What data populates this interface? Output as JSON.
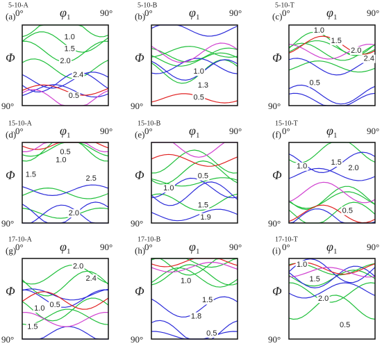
{
  "axis": {
    "x_start": "0°",
    "x_end": "90°",
    "x_label": "φ",
    "x_label_sub": "1",
    "y_label": "Φ",
    "y_end": "90°"
  },
  "panels": [
    {
      "sample": "5-10-A",
      "letter": "(a)",
      "contour_labels": [
        "1.0",
        "1.5",
        "2.0",
        "2.4",
        "0.5"
      ]
    },
    {
      "sample": "5-10-B",
      "letter": "(b)",
      "contour_labels": [
        "1.0",
        "1.3",
        "0.5"
      ]
    },
    {
      "sample": "5-10-T",
      "letter": "(c)",
      "contour_labels": [
        "1.0",
        "1.5",
        "2.0",
        "2.4",
        "0.5"
      ]
    },
    {
      "sample": "15-10-A",
      "letter": "(d)",
      "contour_labels": [
        "0.5",
        "1.0",
        "1.5",
        "2.5",
        "2.0"
      ]
    },
    {
      "sample": "15-10-B",
      "letter": "(e)",
      "contour_labels": [
        "0.5",
        "1.0",
        "1.5",
        "1.9"
      ]
    },
    {
      "sample": "15-10-T",
      "letter": "(f)",
      "contour_labels": [
        "1.5",
        "2.0",
        "1.0",
        "0.5"
      ]
    },
    {
      "sample": "17-10-A",
      "letter": "(g)",
      "contour_labels": [
        "2.0",
        "2.4",
        "1.0",
        "0.5",
        "1.5"
      ]
    },
    {
      "sample": "17-10-B",
      "letter": "(h)",
      "contour_labels": [
        "1.0",
        "1.5",
        "1.8",
        "0.5"
      ]
    },
    {
      "sample": "17-10-T",
      "letter": "(i)",
      "contour_labels": [
        "1.0",
        "1.5",
        "2.0",
        "0.5"
      ]
    }
  ]
}
